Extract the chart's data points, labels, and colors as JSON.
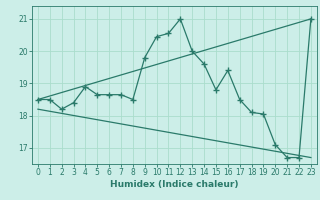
{
  "title": "",
  "xlabel": "Humidex (Indice chaleur)",
  "bg_color": "#cceee8",
  "grid_color": "#aaddcc",
  "line_color": "#2a7a6a",
  "line1_x": [
    0,
    1,
    2,
    3,
    4,
    5,
    6,
    7,
    8,
    9,
    10,
    11,
    12,
    13,
    14,
    15,
    16,
    17,
    18,
    19,
    20,
    21,
    22,
    23
  ],
  "line1_y": [
    18.5,
    18.5,
    18.2,
    18.4,
    18.9,
    18.65,
    18.65,
    18.65,
    18.5,
    19.8,
    20.45,
    20.55,
    21.0,
    20.0,
    19.6,
    18.8,
    19.4,
    18.5,
    18.1,
    18.05,
    17.1,
    16.7,
    16.7,
    21.0
  ],
  "line2_x": [
    0,
    23
  ],
  "line2_y": [
    18.5,
    21.0
  ],
  "line3_x": [
    0,
    23
  ],
  "line3_y": [
    18.2,
    16.7
  ],
  "xlim": [
    -0.5,
    23.5
  ],
  "ylim": [
    16.5,
    21.4
  ],
  "yticks": [
    17,
    18,
    19,
    20,
    21
  ],
  "xticks": [
    0,
    1,
    2,
    3,
    4,
    5,
    6,
    7,
    8,
    9,
    10,
    11,
    12,
    13,
    14,
    15,
    16,
    17,
    18,
    19,
    20,
    21,
    22,
    23
  ],
  "marker": "+",
  "markersize": 4,
  "linewidth": 0.9,
  "tick_fontsize": 5.5,
  "xlabel_fontsize": 6.5
}
